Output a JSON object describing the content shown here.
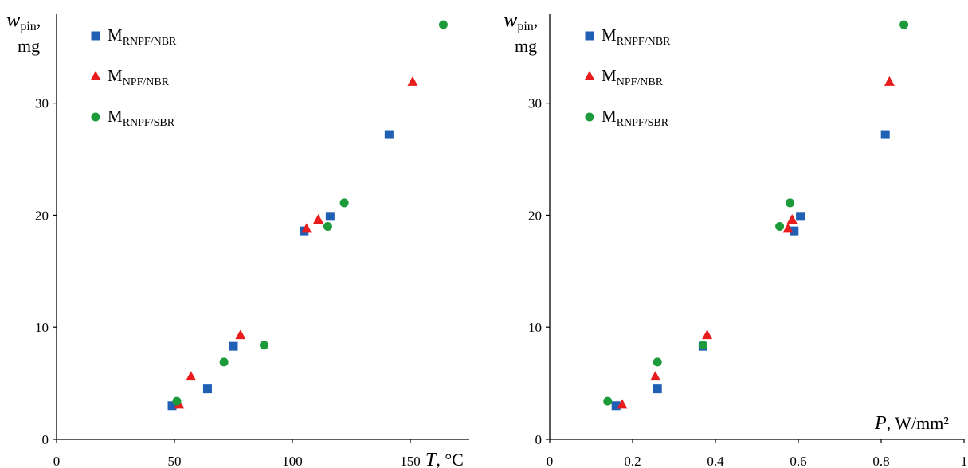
{
  "chart_data": [
    {
      "type": "scatter",
      "ylabel": {
        "symbol": "w",
        "sub": "pin",
        "unit": "mg"
      },
      "xlabel": {
        "symbol": "T",
        "unit": "°C"
      },
      "xlim": [
        0,
        175
      ],
      "ylim": [
        0,
        38
      ],
      "x_ticks": [
        "0",
        "50",
        "100",
        "150"
      ],
      "y_ticks": [
        "0",
        "10",
        "20",
        "30"
      ],
      "legend_position": "top-left",
      "series": [
        {
          "name": "M",
          "sub": "RNPF/NBR",
          "marker": "square",
          "color": "#1f5fb4",
          "points": [
            [
              49,
              3.0
            ],
            [
              64,
              4.5
            ],
            [
              75,
              8.3
            ],
            [
              105,
              18.6
            ],
            [
              116,
              19.9
            ],
            [
              141,
              27.2
            ]
          ]
        },
        {
          "name": "M",
          "sub": "NPF/NBR",
          "marker": "triangle",
          "color": "#e81c1c",
          "points": [
            [
              52,
              3.1
            ],
            [
              57,
              5.6
            ],
            [
              78,
              9.3
            ],
            [
              106,
              18.8
            ],
            [
              111,
              19.6
            ],
            [
              151,
              31.9
            ]
          ]
        },
        {
          "name": "M",
          "sub": "RNPF/SBR",
          "marker": "circle",
          "color": "#1d9a3a",
          "points": [
            [
              51,
              3.4
            ],
            [
              71,
              6.9
            ],
            [
              88,
              8.4
            ],
            [
              115,
              19.0
            ],
            [
              122,
              21.1
            ],
            [
              164,
              37.0
            ]
          ]
        }
      ]
    },
    {
      "type": "scatter",
      "ylabel": {
        "symbol": "w",
        "sub": "pin",
        "unit": "mg"
      },
      "xlabel": {
        "symbol": "P",
        "unit": "W/mm²"
      },
      "xlim": [
        0,
        1
      ],
      "ylim": [
        0,
        38
      ],
      "x_ticks": [
        "0",
        "0.2",
        "0.4",
        "0.6",
        "0.8",
        "1"
      ],
      "y_ticks": [
        "0",
        "10",
        "20",
        "30"
      ],
      "legend_position": "top-left",
      "series": [
        {
          "name": "M",
          "sub": "RNPF/NBR",
          "marker": "square",
          "color": "#1f5fb4",
          "points": [
            [
              0.16,
              3.0
            ],
            [
              0.26,
              4.5
            ],
            [
              0.37,
              8.3
            ],
            [
              0.59,
              18.6
            ],
            [
              0.605,
              19.9
            ],
            [
              0.81,
              27.2
            ]
          ]
        },
        {
          "name": "M",
          "sub": "NPF/NBR",
          "marker": "triangle",
          "color": "#e81c1c",
          "points": [
            [
              0.175,
              3.1
            ],
            [
              0.255,
              5.6
            ],
            [
              0.38,
              9.3
            ],
            [
              0.575,
              18.8
            ],
            [
              0.585,
              19.6
            ],
            [
              0.82,
              31.9
            ]
          ]
        },
        {
          "name": "M",
          "sub": "RNPF/SBR",
          "marker": "circle",
          "color": "#1d9a3a",
          "points": [
            [
              0.14,
              3.4
            ],
            [
              0.26,
              6.9
            ],
            [
              0.37,
              8.4
            ],
            [
              0.555,
              19.0
            ],
            [
              0.58,
              21.1
            ],
            [
              0.855,
              37.0
            ]
          ]
        }
      ]
    }
  ]
}
